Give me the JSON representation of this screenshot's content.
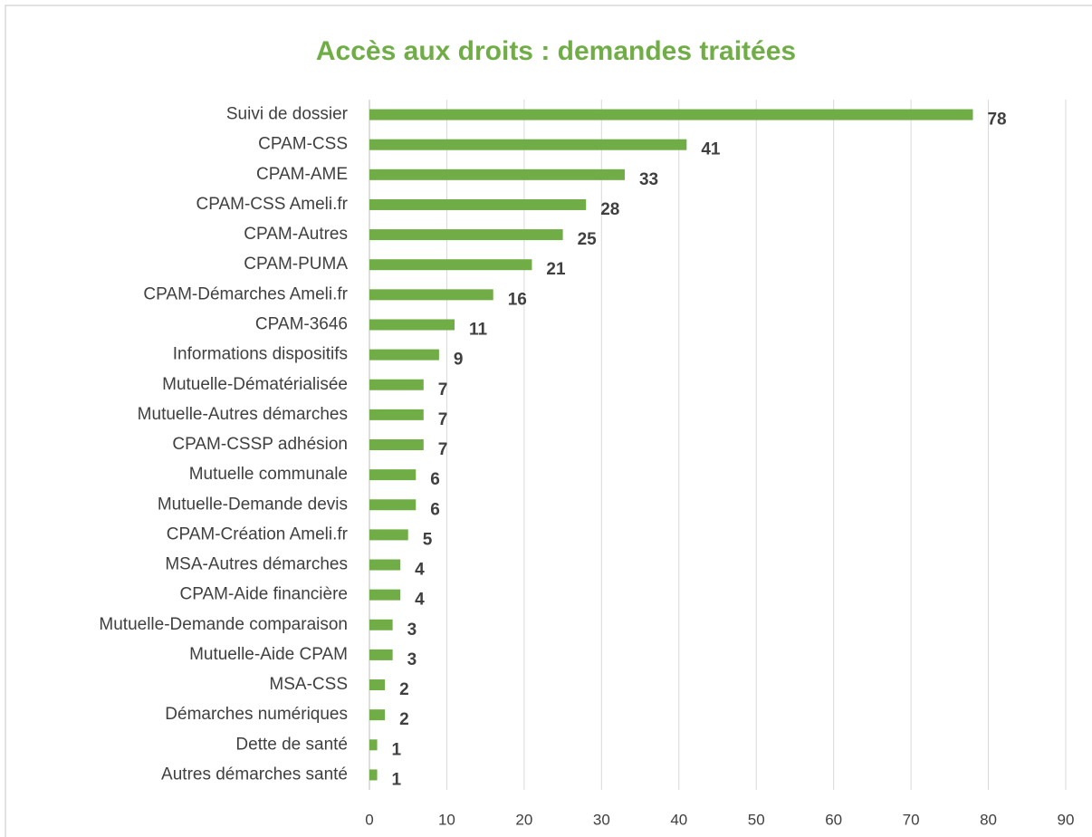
{
  "chart_data": {
    "type": "bar",
    "orientation": "horizontal",
    "title": "Accès aux droits : demandes traitées",
    "categories": [
      "Suivi de dossier",
      "CPAM-CSS",
      "CPAM-AME",
      "CPAM-CSS Ameli.fr",
      "CPAM-Autres",
      "CPAM-PUMA",
      "CPAM-Démarches Ameli.fr",
      "CPAM-3646",
      "Informations dispositifs",
      "Mutuelle-Dématérialisée",
      "Mutuelle-Autres démarches",
      "CPAM-CSSP adhésion",
      "Mutuelle communale",
      "Mutuelle-Demande devis",
      "CPAM-Création Ameli.fr",
      "MSA-Autres démarches",
      "CPAM-Aide financière",
      "Mutuelle-Demande comparaison",
      "Mutuelle-Aide CPAM",
      "MSA-CSS",
      "Démarches numériques",
      "Dette de santé",
      "Autres démarches santé"
    ],
    "values": [
      78,
      41,
      33,
      28,
      25,
      21,
      16,
      11,
      9,
      7,
      7,
      7,
      6,
      6,
      5,
      4,
      4,
      3,
      3,
      2,
      2,
      1,
      1
    ],
    "color": "#70ad47",
    "xlim": [
      0,
      90
    ],
    "xticks": [
      0,
      10,
      20,
      30,
      40,
      50,
      60,
      70,
      80,
      90
    ],
    "grid": true
  }
}
